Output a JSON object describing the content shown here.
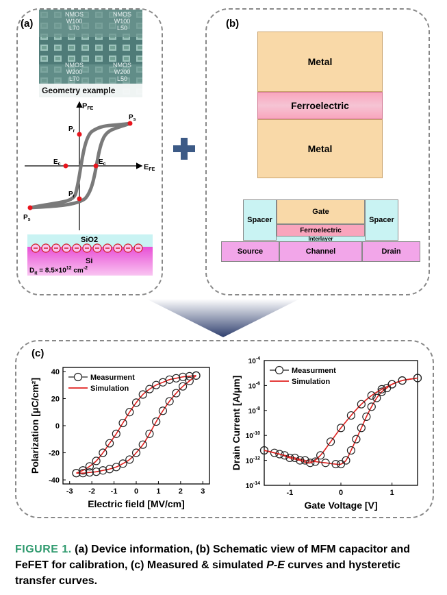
{
  "panel_a": {
    "tag": "(a)",
    "micrograph": {
      "labels_top": [
        "NMOS\nW100\nL70",
        "NMOS\nW100\nL50"
      ],
      "labels_bottom": [
        "NMOS\nW200\nL70",
        "NMOS\nW200\nL50"
      ],
      "caption": "Geometry example"
    },
    "loop": {
      "y_axis": "P",
      "y_sub": "FE",
      "x_axis": "E",
      "x_sub": "FE",
      "ps": "P",
      "ps_sub": "s",
      "pr": "P",
      "pr_sub": "r",
      "ec": "E",
      "ec_sub": "c"
    },
    "mos": {
      "oxide": "SiO2",
      "substrate": "Si",
      "dit": "D",
      "dit_sub": "it",
      "dit_value": " = 8.5×10",
      "dit_exp": "12",
      "dit_unit": " cm",
      "dit_unit_exp": "-2"
    }
  },
  "panel_b": {
    "tag": "(b)",
    "mfm": [
      "Metal",
      "Ferroelectric",
      "Metal"
    ],
    "fefet": {
      "gate": "Gate",
      "ferroelectric": "Ferroelectric",
      "interlayer": "Interlayer",
      "spacer_left": "Spacer",
      "spacer_right": "Spacer",
      "source": "Source",
      "channel": "Channel",
      "drain": "Drain"
    }
  },
  "panel_c": {
    "tag": "(c)"
  },
  "chart_data": [
    {
      "type": "line",
      "title": "",
      "xlabel": "Electric field [MV/cm]",
      "ylabel": "Polarization [μC/cm²]",
      "xlim": [
        -3.3,
        3.3
      ],
      "ylim": [
        -43,
        43
      ],
      "xticks": [
        "-3",
        "-2",
        "-1",
        "0",
        "1",
        "2",
        "3"
      ],
      "yticks": [
        "-40",
        "-20",
        "0",
        "20",
        "40"
      ],
      "legend": [
        "Measurment",
        "Simulation"
      ],
      "legend_position": "top-left",
      "series": [
        {
          "name": "Measurment (upper branch)",
          "x": [
            -2.7,
            -2.4,
            -2.1,
            -1.8,
            -1.5,
            -1.2,
            -0.9,
            -0.6,
            -0.3,
            0.0,
            0.3,
            0.6,
            0.9,
            1.2,
            1.5,
            1.8,
            2.1,
            2.4,
            2.7
          ],
          "y": [
            -35,
            -33,
            -30,
            -26,
            -20,
            -13,
            -6,
            2,
            10,
            17,
            23,
            27,
            30,
            32,
            34,
            35,
            36,
            36.5,
            37
          ]
        },
        {
          "name": "Measurment (lower branch)",
          "x": [
            2.7,
            2.4,
            2.1,
            1.8,
            1.5,
            1.2,
            0.9,
            0.6,
            0.3,
            0.0,
            -0.3,
            -0.6,
            -0.9,
            -1.2,
            -1.5,
            -1.8,
            -2.1,
            -2.4,
            -2.7
          ],
          "y": [
            37,
            33,
            29,
            24,
            18,
            11,
            3,
            -6,
            -14,
            -20,
            -25,
            -28,
            -30.5,
            -32,
            -33,
            -34,
            -34.5,
            -35,
            -35
          ]
        }
      ]
    },
    {
      "type": "line",
      "title": "",
      "xlabel": "Gate Voltage [V]",
      "ylabel": "Drain Current [A/μm]",
      "xlim": [
        -1.5,
        1.5
      ],
      "ylim_log10": [
        -14,
        -4
      ],
      "xticks": [
        "-1",
        "0",
        "1"
      ],
      "yticks_exp": [
        "-4",
        "-6",
        "-8",
        "-10",
        "-12",
        "-14"
      ],
      "ytick_base": "10",
      "legend": [
        "Measurment",
        "Simulation"
      ],
      "legend_position": "top-left",
      "series": [
        {
          "name": "Measurment (forward sweep)",
          "x": [
            -1.5,
            -1.3,
            -1.1,
            -0.9,
            -0.7,
            -0.5,
            -0.3,
            -0.1,
            0.0,
            0.1,
            0.2,
            0.3,
            0.4,
            0.5,
            0.6,
            0.7,
            0.8,
            0.9,
            1.0,
            1.2,
            1.5
          ],
          "log10_y": [
            -11.2,
            -11.4,
            -11.6,
            -11.8,
            -12.0,
            -12.1,
            -12.2,
            -12.3,
            -12.3,
            -12.0,
            -11.2,
            -10.3,
            -9.4,
            -8.5,
            -7.7,
            -7.0,
            -6.5,
            -6.2,
            -5.9,
            -5.6,
            -5.4
          ]
        },
        {
          "name": "Measurment (reverse sweep)",
          "x": [
            1.5,
            1.2,
            1.0,
            0.8,
            0.6,
            0.4,
            0.2,
            0.0,
            -0.2,
            -0.4,
            -0.6,
            -0.8,
            -1.0,
            -1.2,
            -1.5
          ],
          "log10_y": [
            -5.4,
            -5.6,
            -5.9,
            -6.3,
            -6.8,
            -7.5,
            -8.4,
            -9.4,
            -10.5,
            -11.6,
            -12.2,
            -12.0,
            -11.8,
            -11.5,
            -11.2
          ]
        }
      ]
    }
  ],
  "caption": {
    "figure_label": "FIGURE 1.",
    "text_1": " (a) Device information, (b) Schematic view of MFM capacitor and FeFET for calibration, (c) Measured & simulated ",
    "italic": "P-E",
    "text_2": " curves and hysteretic transfer curves."
  },
  "colors": {
    "metal": "#f9d9a8",
    "ferroelectric": "#f9a5bd",
    "spacer": "#c9f3f3",
    "substrate": "#f2a6e9",
    "fitting_line": "#e0201e",
    "loop": "#7a7a7a",
    "point": "#e8141c",
    "caption_accent": "#2f9a6e"
  }
}
